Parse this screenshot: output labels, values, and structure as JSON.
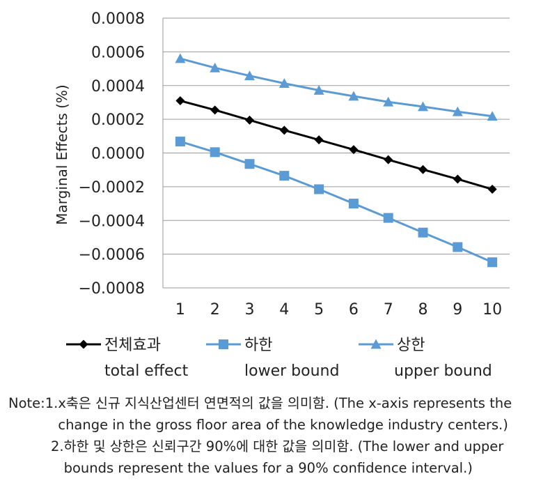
{
  "chart_data": {
    "type": "line",
    "ylabel": "Marginal Effects (%)",
    "xlabel": "",
    "x": [
      1,
      2,
      3,
      4,
      5,
      6,
      7,
      8,
      9,
      10
    ],
    "x_tick_labels": [
      "1",
      "2",
      "3",
      "4",
      "5",
      "6",
      "7",
      "8",
      "9",
      "10"
    ],
    "ylim": [
      -0.0008,
      0.0008
    ],
    "y_ticks": [
      0.0008,
      0.0006,
      0.0004,
      0.0002,
      0.0,
      -0.0002,
      -0.0004,
      -0.0006,
      -0.0008
    ],
    "y_tick_labels": [
      "0.0008",
      "0.0006",
      "0.0004",
      "0.0002",
      "0.0000",
      "−0.0002",
      "−0.0004",
      "−0.0006",
      "−0.0008"
    ],
    "grid": "horizontal",
    "legend_placement": "bottom",
    "series": [
      {
        "name": "전체효과",
        "name_en": "total effect",
        "marker": "diamond",
        "color": "#000000",
        "values": [
          0.00031,
          0.000255,
          0.000195,
          0.000135,
          7.8e-05,
          2e-05,
          -4e-05,
          -9.8e-05,
          -0.000155,
          -0.000215
        ]
      },
      {
        "name": "하한",
        "name_en": "lower bound",
        "marker": "square",
        "color": "#5B9BD5",
        "values": [
          6.8e-05,
          5e-06,
          -6.5e-05,
          -0.000135,
          -0.000215,
          -0.0003,
          -0.000385,
          -0.000472,
          -0.000558,
          -0.000648
        ]
      },
      {
        "name": "상한",
        "name_en": "upper bound",
        "marker": "triangle",
        "color": "#5B9BD5",
        "values": [
          0.00056,
          0.000505,
          0.000458,
          0.000413,
          0.000372,
          0.000337,
          0.000303,
          0.000275,
          0.000245,
          0.000218
        ]
      }
    ]
  },
  "notes": {
    "prefix": "Note: ",
    "items": [
      {
        "num": "1. ",
        "text": "x축은 신규 지식산업센터 연면적의 값을 의미함. (The x-axis represents the change in the gross floor area of the knowledge industry centers.)"
      },
      {
        "num": "2. ",
        "text": "하한 및 상한은 신뢰구간 90%에 대한 값을 의미함. (The lower and upper bounds represent the values for a 90% confidence interval.)"
      }
    ]
  }
}
